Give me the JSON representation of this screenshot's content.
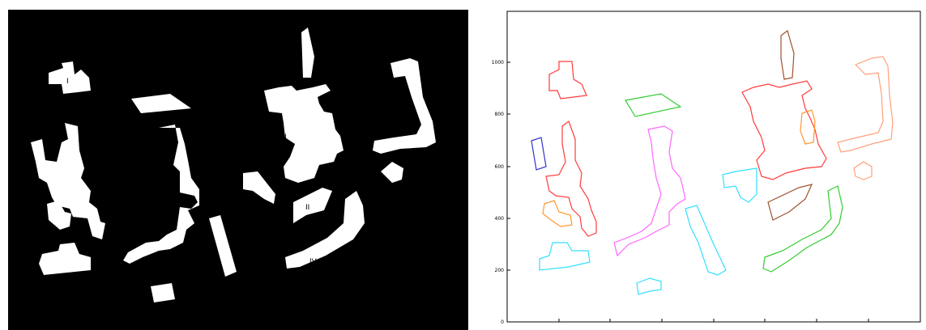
{
  "left_figure": {
    "background_color": "#000000",
    "building_color": "#ffffff",
    "building_labels": [
      "I",
      "II",
      "III",
      "IV"
    ]
  },
  "right_figure": {
    "y_ticks": [
      "0",
      "200",
      "400",
      "600",
      "800",
      "1000"
    ],
    "x_ticks": [
      "",
      "",
      "",
      "",
      "",
      "",
      "",
      "",
      ""
    ],
    "outline_colors": [
      "#ff3b3b",
      "#33cc33",
      "#3333cc",
      "#ff66ff",
      "#33e0ff",
      "#ff9933",
      "#a0522d",
      "#ffa07a"
    ]
  }
}
